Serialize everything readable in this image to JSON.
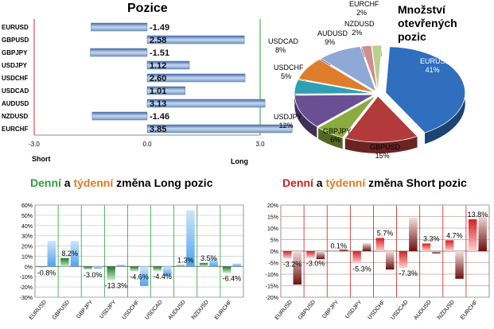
{
  "colors": {
    "long_green": "#2e9e3e",
    "weekly_orange": "#e07b1f",
    "short_red": "#cc1f1f",
    "bar_blue": "#6f95c8",
    "grid": "#d0d0d0",
    "red_grid": "#c8a0a0"
  },
  "chart_data": [
    {
      "type": "bar",
      "orientation": "horizontal",
      "title": "Pozice",
      "categories": [
        "EURUSD",
        "GBPUSD",
        "GBPJPY",
        "USDJPY",
        "USDCHF",
        "USDCAD",
        "AUDUSD",
        "NZDUSD",
        "EURCHF"
      ],
      "values": [
        -1.49,
        2.58,
        -1.51,
        1.12,
        2.6,
        1.01,
        3.13,
        -1.46,
        3.85
      ],
      "value_labels": [
        "-1.49",
        "2.58",
        "-1.51",
        "1.12",
        "2.60",
        "1.01",
        "3.13",
        "-1.46",
        "3.85"
      ],
      "xlim": [
        -3.0,
        3.0
      ],
      "xticks": [
        "-3.0",
        "0.0",
        "3.0"
      ],
      "xlabel_left": "Short",
      "xlabel_right": "Long"
    },
    {
      "type": "pie",
      "title_lines": [
        "Množství",
        "otevřených",
        "pozic"
      ],
      "slices": [
        {
          "label": "EURUSD",
          "value": 41,
          "text": "41%",
          "color": "#2f6fbd"
        },
        {
          "label": "GBPUSD",
          "value": 15,
          "text": "15%",
          "color": "#b23a3a"
        },
        {
          "label": "GBPJPY",
          "value": 6,
          "text": "6%",
          "color": "#8aab3e"
        },
        {
          "label": "USDJPY",
          "value": 12,
          "text": "12%",
          "color": "#6a4f95"
        },
        {
          "label": "USDCHF",
          "value": 5,
          "text": "5%",
          "color": "#2f9fb5"
        },
        {
          "label": "USDCAD",
          "value": 8,
          "text": "8%",
          "color": "#de7e2a"
        },
        {
          "label": "AUDUSD",
          "value": 9,
          "text": "9%",
          "color": "#8ea9d6"
        },
        {
          "label": "NZDUSD",
          "value": 2,
          "text": "2%",
          "color": "#d08d8d"
        },
        {
          "label": "EURCHF",
          "value": 2,
          "text": "2%",
          "color": "#b9cf8e"
        }
      ]
    },
    {
      "type": "bar",
      "title_parts": [
        {
          "text": "Denní",
          "color": "#2e9e3e"
        },
        {
          "text": " a ",
          "color": "#000000"
        },
        {
          "text": "týdenní",
          "color": "#e07b1f"
        },
        {
          "text": " změna Long pozic",
          "color": "#000000"
        }
      ],
      "categories": [
        "EURUSD",
        "GBPUSD",
        "GBPJPY",
        "USDJPY",
        "USDCHF",
        "USDCAD",
        "AUDUSD",
        "NZDUSD",
        "EURCHF"
      ],
      "series": [
        {
          "values": [
            -0.8,
            8.2,
            -3.0,
            -13.3,
            -4.6,
            -4.4,
            1.3,
            3.5,
            -6.4
          ]
        },
        {
          "values": [
            25,
            25,
            -2,
            2,
            -19,
            -9,
            55,
            8,
            3
          ]
        }
      ],
      "data_labels": [
        "-0.8%",
        "8.2%",
        "-3.0%",
        "-13.3%",
        "-4.6%",
        "-4.4%",
        "1.3%",
        "3.5%",
        "-6.4%"
      ],
      "ylim": [
        -30,
        60
      ],
      "yticks": [
        "60%",
        "50%",
        "40%",
        "30%",
        "20%",
        "10%",
        "0%",
        "-10%",
        "-20%",
        "-30%"
      ]
    },
    {
      "type": "bar",
      "title_parts": [
        {
          "text": "Denní",
          "color": "#cc1f1f"
        },
        {
          "text": " a ",
          "color": "#000000"
        },
        {
          "text": "týdenní",
          "color": "#e07b1f"
        },
        {
          "text": " změna Short pozic",
          "color": "#000000"
        }
      ],
      "categories": [
        "EURUSD",
        "GBPUSD",
        "GBPJPY",
        "USDJPY",
        "USDCHF",
        "USDCAD",
        "AUDUSD",
        "NZDUSD",
        "EURCHF"
      ],
      "series": [
        {
          "values": [
            -3.2,
            -3.0,
            0.1,
            -5.3,
            5.7,
            -7.3,
            3.3,
            4.7,
            13.8
          ]
        },
        {
          "values": [
            -14.5,
            -3.5,
            1.0,
            3.5,
            -8.0,
            14.5,
            -1.0,
            -12.0,
            15.5
          ]
        }
      ],
      "data_labels": [
        "-3.2%",
        "-3.0%",
        "0.1%",
        "-5.3%",
        "5.7%",
        "-7.3%",
        "3.3%",
        "4.7%",
        "13.8%"
      ],
      "ylim": [
        -20,
        20
      ],
      "yticks": [
        "20%",
        "15%",
        "10%",
        "5%",
        "0%",
        "-5%",
        "-10%",
        "-15%",
        "-20%"
      ]
    }
  ]
}
